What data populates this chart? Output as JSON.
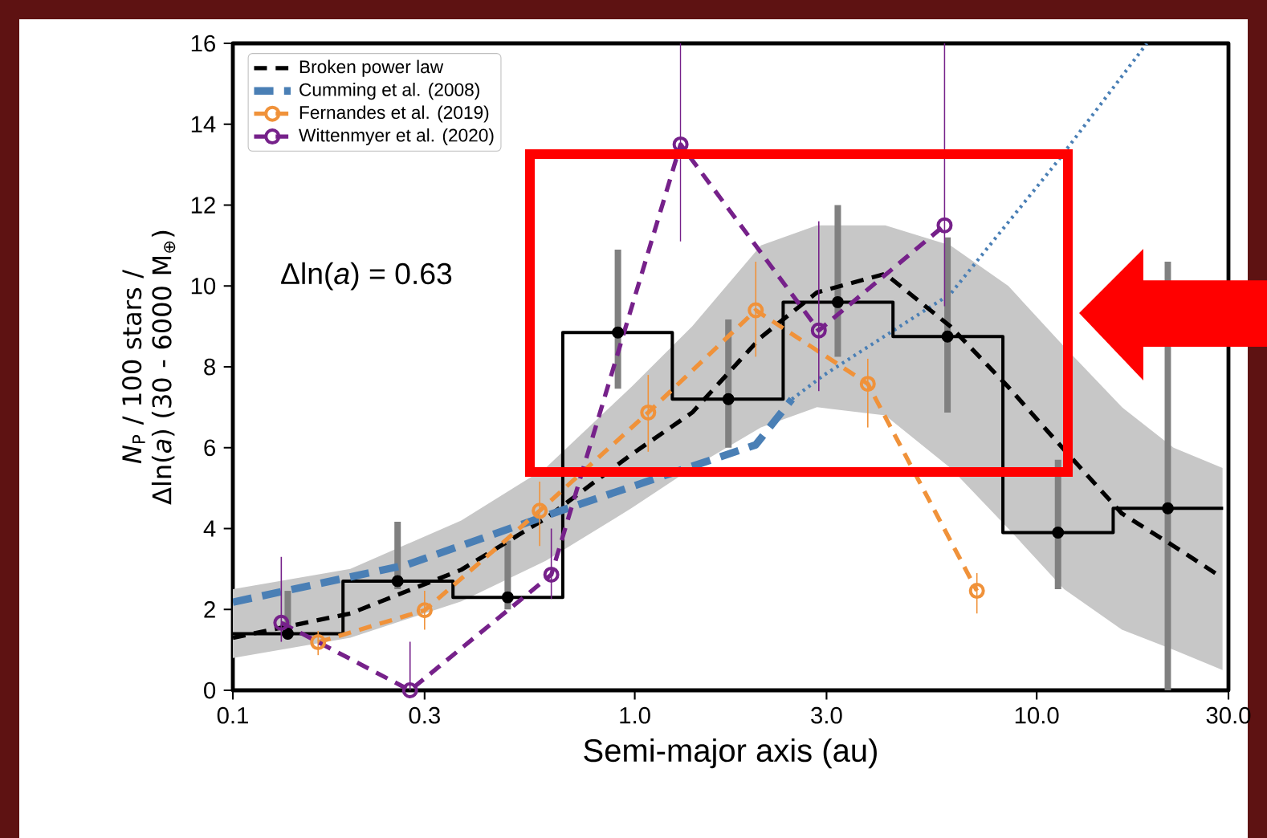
{
  "chart_data": {
    "type": "line",
    "xlabel": "Semi-major axis (au)",
    "ylabel": "*N*$_{P}$ / 100 stars / Δln(*a*) (30 - 6000 M$_{⊕}$)",
    "annotations": [
      "Δln(*a*) = 0.63"
    ],
    "log": "x",
    "xlim": [
      0.1,
      30
    ],
    "ylim": [
      0,
      16
    ],
    "xticks": [
      0.1,
      0.3,
      {
        "value": 1,
        "label": "1.0"
      },
      {
        "value": 3,
        "label": "3.0"
      },
      {
        "value": 10,
        "label": "10.0"
      },
      {
        "value": 30,
        "label": "30.0"
      }
    ],
    "yticks": [
      0,
      2,
      4,
      6,
      8,
      10,
      12,
      14,
      16
    ],
    "legend": "top left",
    "series": [
      {
        "name": "Broken power law",
        "color": "#000000",
        "line_style": "dashed",
        "marker": "none",
        "x": [
          0.1,
          0.196,
          0.37,
          0.6,
          0.98,
          1.39,
          2.06,
          2.84,
          4.2,
          6.1,
          8.5,
          11.7,
          16.3,
          21.9,
          29
        ],
        "values": [
          1.3,
          1.9,
          2.98,
          4.25,
          5.83,
          6.87,
          8.73,
          9.84,
          10.3,
          9.0,
          7.5,
          5.95,
          4.37,
          3.57,
          2.78
        ],
        "lower": [
          0.8,
          1.3,
          2.2,
          3.2,
          4.5,
          5.5,
          6.5,
          7.0,
          6.8,
          5.5,
          4.0,
          2.5,
          1.5,
          1.0,
          0.5
        ],
        "upper": [
          2.5,
          3.0,
          4.2,
          5.5,
          7.5,
          9.0,
          11.0,
          11.5,
          11.5,
          11.0,
          10.0,
          8.5,
          7.0,
          6.0,
          5.5
        ]
      },
      {
        "name": "Cumming et al. (2008)",
        "color": "#4a7fb5",
        "line_style": "dashed",
        "marker": "none",
        "x": [
          0.1,
          0.27,
          0.68,
          2.0,
          2.46
        ],
        "values": [
          2.18,
          3.1,
          4.5,
          6.07,
          7.2
        ]
      },
      {
        "color": "#4a7fb5",
        "line_style": "dotted",
        "marker": "none",
        "x": [
          2.46,
          2.96,
          6.1,
          11.3,
          18.8
        ],
        "values": [
          7.2,
          7.8,
          9.8,
          13.1,
          16
        ]
      },
      {
        "name": "Fernandes et al. (2019)",
        "color": "#f0923a",
        "line_style": "dashed",
        "marker": "circle",
        "x": [
          0.163,
          0.3,
          0.58,
          1.08,
          2.0,
          3.8,
          7.1
        ],
        "values": [
          1.19,
          1.98,
          4.44,
          6.87,
          9.4,
          7.58,
          2.46
        ],
        "errors": [
          [
            0.87,
            1.47
          ],
          [
            1.5,
            2.46
          ],
          [
            3.57,
            5.16
          ],
          [
            5.9,
            7.8
          ],
          [
            8.25,
            10.6
          ],
          [
            6.5,
            8.2
          ],
          [
            1.9,
            2.9
          ]
        ]
      },
      {
        "name": "Wittenmyer et al. (2020)",
        "color": "#76218a",
        "line_style": "dashed",
        "marker": "circle",
        "x": [
          0.132,
          0.276,
          0.62,
          1.3,
          2.87,
          5.9
        ],
        "values": [
          1.67,
          0,
          2.86,
          13.5,
          8.9,
          11.5
        ],
        "errors": [
          [
            1.2,
            3.3
          ],
          [
            0,
            1.2
          ],
          [
            2.26,
            4.0
          ],
          [
            11.1,
            16
          ],
          [
            7.4,
            11.6
          ],
          [
            9.5,
            16
          ]
        ]
      },
      {
        "type": "histogram",
        "color": "#000000",
        "bins": [
          0.1,
          0.188,
          0.353,
          0.662,
          1.24,
          2.34,
          4.39,
          8.24,
          15.5,
          29.1
        ],
        "values": [
          1.4,
          2.7,
          2.3,
          8.85,
          7.2,
          9.6,
          8.75,
          3.9,
          4.5
        ]
      },
      {
        "type": "scatter",
        "color": "#000000",
        "marker": "circle",
        "x": [
          0.137,
          0.257,
          0.483,
          0.908,
          1.71,
          3.2,
          6.0,
          11.3,
          21.2
        ],
        "values": [
          1.4,
          2.7,
          2.3,
          8.85,
          7.2,
          9.6,
          8.75,
          3.9,
          4.5
        ],
        "errors": [
          [
            1.27,
            2.46
          ],
          [
            2.5,
            4.17
          ],
          [
            2.0,
            3.7
          ],
          [
            7.46,
            10.9
          ],
          [
            6.0,
            9.17
          ],
          [
            8.25,
            12.0
          ],
          [
            6.87,
            11.2
          ],
          [
            2.5,
            5.7
          ],
          [
            0,
            10.6
          ]
        ]
      }
    ]
  }
}
